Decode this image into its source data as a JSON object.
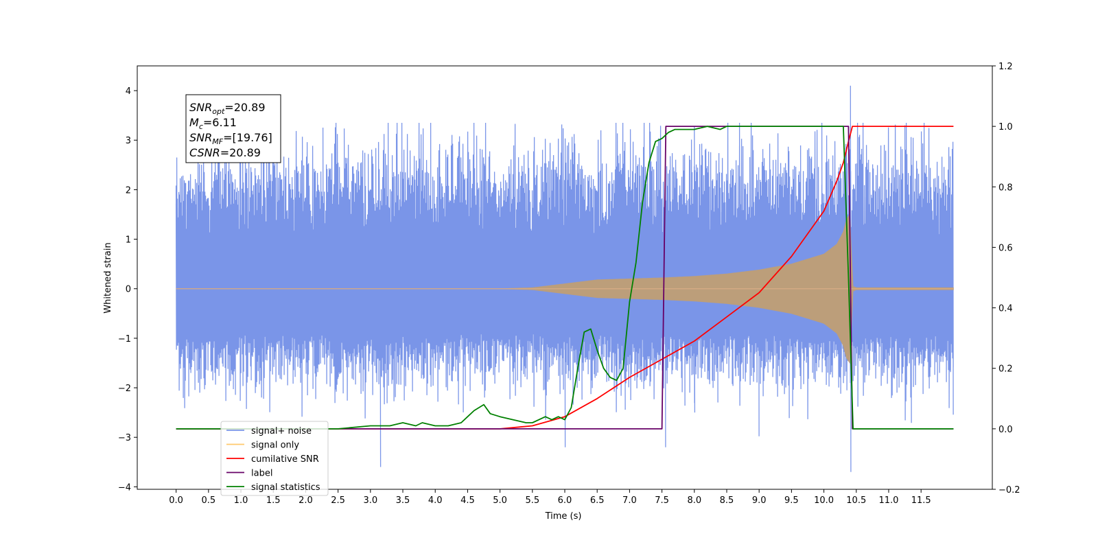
{
  "chart_data": {
    "type": "line",
    "title": "",
    "xlabel": "Time (s)",
    "ylabel": "Whitened strain",
    "xlim": [
      -0.6,
      12.6
    ],
    "ylim": [
      -4.05,
      4.5
    ],
    "y2lim": [
      -0.2,
      1.2
    ],
    "xticks": [
      "0.0",
      "0.5",
      "1.0",
      "1.5",
      "2.0",
      "2.5",
      "3.0",
      "3.5",
      "4.0",
      "4.5",
      "5.0",
      "5.5",
      "6.0",
      "6.5",
      "7.0",
      "7.5",
      "8.0",
      "8.5",
      "9.0",
      "9.5",
      "10.0",
      "10.5",
      "11.0",
      "11.5"
    ],
    "yticks": [
      "4",
      "3",
      "2",
      "1",
      "0",
      "−1",
      "−2",
      "−3",
      "−4"
    ],
    "y2ticks": [
      "1.2",
      "1.0",
      "0.8",
      "0.6",
      "0.4",
      "0.2",
      "0.0",
      "−0.2"
    ],
    "legend": {
      "placement": "lower-left",
      "entries": [
        {
          "label": "signal+ noise",
          "color": "#7a95e8"
        },
        {
          "label": "signal only",
          "color": "#ffc96b"
        },
        {
          "label": "cumilative SNR",
          "color": "#ff0000"
        },
        {
          "label": "label",
          "color": "#660066"
        },
        {
          "label": "signal statistics",
          "color": "#008000"
        }
      ]
    },
    "info_box": {
      "lines": [
        {
          "sym": "SNR",
          "sub": "opt",
          "val": "=20.89"
        },
        {
          "sym": "M",
          "sub": "c",
          "val": "=6.11"
        },
        {
          "sym": "SNR",
          "sub": "MF",
          "val": "=[19.76]"
        },
        {
          "sym": "CSNR",
          "sub": "",
          "val": "=20.89"
        }
      ]
    },
    "noise": {
      "t_range": [
        0.0,
        12.0
      ],
      "sigma": 1.0,
      "max": 4.1,
      "min": -3.7,
      "color": "#7a95e8"
    },
    "signal_envelope": {
      "color": "#bc9e7a",
      "t": [
        0,
        5.0,
        5.5,
        6.0,
        6.5,
        7.0,
        7.5,
        8.0,
        8.5,
        9.0,
        9.5,
        10.0,
        10.2,
        10.3,
        10.35,
        10.4,
        10.45,
        10.5,
        12.0
      ],
      "amp": [
        0,
        0,
        0.02,
        0.1,
        0.18,
        0.2,
        0.22,
        0.25,
        0.3,
        0.38,
        0.5,
        0.7,
        0.9,
        1.15,
        1.4,
        1.5,
        0.05,
        0.02,
        0.02
      ]
    },
    "series": [
      {
        "name": "cumilative SNR",
        "axis": "right",
        "color": "#ff0000",
        "x": [
          0,
          5.0,
          5.5,
          6.0,
          6.5,
          7.0,
          7.5,
          8.0,
          8.5,
          9.0,
          9.5,
          10.0,
          10.2,
          10.3,
          10.38,
          10.44,
          10.5,
          11.0,
          12.0
        ],
        "y": [
          0,
          0,
          0.01,
          0.04,
          0.1,
          0.17,
          0.23,
          0.29,
          0.37,
          0.45,
          0.57,
          0.72,
          0.82,
          0.88,
          0.95,
          1.0,
          1.0,
          1.0,
          1.0
        ]
      },
      {
        "name": "label",
        "axis": "right",
        "color": "#660066",
        "x": [
          0,
          7.5,
          7.56,
          10.38,
          10.44,
          12.0
        ],
        "y": [
          0,
          0,
          1.0,
          1.0,
          0,
          0
        ]
      },
      {
        "name": "signal statistics",
        "axis": "right",
        "color": "#008000",
        "x": [
          0,
          2.5,
          3.0,
          3.3,
          3.5,
          3.7,
          3.8,
          4.0,
          4.2,
          4.4,
          4.5,
          4.6,
          4.75,
          4.85,
          5.0,
          5.2,
          5.4,
          5.5,
          5.7,
          5.8,
          5.9,
          6.0,
          6.1,
          6.2,
          6.3,
          6.4,
          6.5,
          6.6,
          6.7,
          6.8,
          6.9,
          7.0,
          7.1,
          7.2,
          7.3,
          7.4,
          7.5,
          7.6,
          7.7,
          7.8,
          8.0,
          8.2,
          8.4,
          8.5,
          8.6,
          8.8,
          9.0,
          9.5,
          10.0,
          10.3,
          10.38,
          10.45,
          11.0,
          12.0
        ],
        "y": [
          0,
          0,
          0.01,
          0.01,
          0.02,
          0.01,
          0.02,
          0.01,
          0.01,
          0.02,
          0.04,
          0.06,
          0.08,
          0.05,
          0.04,
          0.03,
          0.02,
          0.02,
          0.04,
          0.03,
          0.04,
          0.03,
          0.07,
          0.2,
          0.32,
          0.33,
          0.26,
          0.2,
          0.17,
          0.16,
          0.2,
          0.42,
          0.55,
          0.75,
          0.88,
          0.95,
          0.96,
          0.98,
          0.99,
          0.99,
          0.99,
          1.0,
          0.99,
          1.0,
          1.0,
          1.0,
          1.0,
          1.0,
          1.0,
          1.0,
          0.5,
          0,
          0,
          0
        ]
      }
    ]
  }
}
